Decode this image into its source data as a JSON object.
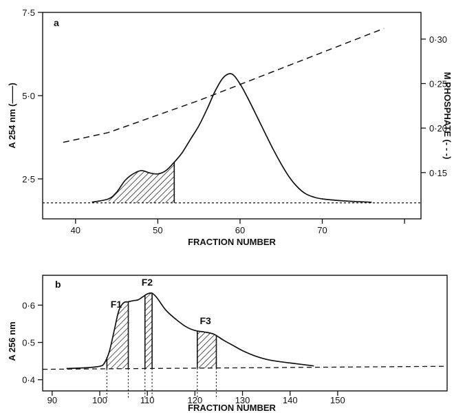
{
  "chart_data": [
    {
      "panel": "a",
      "type": "line",
      "xlabel": "FRACTION NUMBER",
      "ylabel": "A 254 nm (——)",
      "y2label": "M PHOSPHATE (- - -)",
      "xlim": [
        36,
        82
      ],
      "ylim": [
        1.3,
        7.5
      ],
      "y2lim": [
        0.098,
        0.33
      ],
      "xticks": [
        40,
        50,
        60,
        70
      ],
      "xtick_labels": [
        "40",
        "50",
        "60",
        "70"
      ],
      "xticks_unlabeled": [
        80
      ],
      "yticks": [
        2.5,
        5.0,
        7.5
      ],
      "ytick_labels": [
        "2·5",
        "5·0",
        "7·5"
      ],
      "y2ticks": [
        0.15,
        0.2,
        0.25,
        0.3
      ],
      "y2tick_labels": [
        "0·15",
        "0·20",
        "0·25",
        "0·30"
      ],
      "series": [
        {
          "style": "solid",
          "x": [
            42,
            44,
            45,
            46,
            47,
            48,
            49,
            50,
            51,
            52,
            53,
            54,
            55,
            56,
            57,
            58,
            59,
            60,
            61,
            62,
            63,
            64,
            65,
            66,
            67,
            68,
            69,
            70,
            72,
            74,
            76
          ],
          "y": [
            1.8,
            1.9,
            2.1,
            2.45,
            2.65,
            2.75,
            2.68,
            2.65,
            2.75,
            3.0,
            3.3,
            3.7,
            4.1,
            4.6,
            5.15,
            5.55,
            5.65,
            5.35,
            4.9,
            4.4,
            3.9,
            3.4,
            2.95,
            2.55,
            2.25,
            2.05,
            1.95,
            1.9,
            1.85,
            1.82,
            1.8
          ]
        },
        {
          "style": "dashed",
          "axis": "right",
          "x": [
            38.5,
            44,
            55,
            77.5
          ],
          "y": [
            0.184,
            0.195,
            0.231,
            0.312
          ]
        },
        {
          "style": "baseline",
          "x": [
            36,
            82
          ],
          "y": [
            1.78,
            1.78
          ]
        }
      ],
      "shaded_range": [
        44,
        52
      ]
    },
    {
      "panel": "b",
      "type": "line",
      "xlabel": "FRACTION NUMBER",
      "ylabel": "A 256 nm",
      "xlim": [
        88,
        173
      ],
      "ylim": [
        0.37,
        0.68
      ],
      "xticks": [
        90,
        100,
        110,
        120,
        130,
        140,
        150
      ],
      "xtick_labels": [
        "90",
        "100",
        "110",
        "120",
        "130",
        "140",
        "150"
      ],
      "yticks": [
        0.4,
        0.5,
        0.6
      ],
      "ytick_labels": [
        "0·4",
        "0·5",
        "0·6"
      ],
      "series": [
        {
          "style": "solid",
          "x": [
            93,
            97,
            100,
            101,
            102,
            103,
            104,
            105,
            106,
            107,
            108,
            109,
            110,
            111,
            112,
            113,
            114,
            116,
            118,
            120,
            122,
            124,
            126,
            128,
            130,
            133,
            136,
            140,
            145
          ],
          "y": [
            0.43,
            0.432,
            0.436,
            0.445,
            0.475,
            0.53,
            0.585,
            0.606,
            0.609,
            0.612,
            0.614,
            0.622,
            0.63,
            0.632,
            0.62,
            0.602,
            0.585,
            0.562,
            0.543,
            0.532,
            0.528,
            0.522,
            0.506,
            0.492,
            0.478,
            0.462,
            0.452,
            0.445,
            0.437
          ]
        },
        {
          "style": "dashed",
          "x": [
            88,
            173
          ],
          "y": [
            0.428,
            0.436
          ]
        }
      ],
      "fractions": [
        {
          "label": "F1",
          "range": [
            101.5,
            106
          ]
        },
        {
          "label": "F2",
          "range": [
            109.5,
            111
          ]
        },
        {
          "label": "F3",
          "range": [
            120.5,
            124.5
          ]
        }
      ]
    }
  ]
}
